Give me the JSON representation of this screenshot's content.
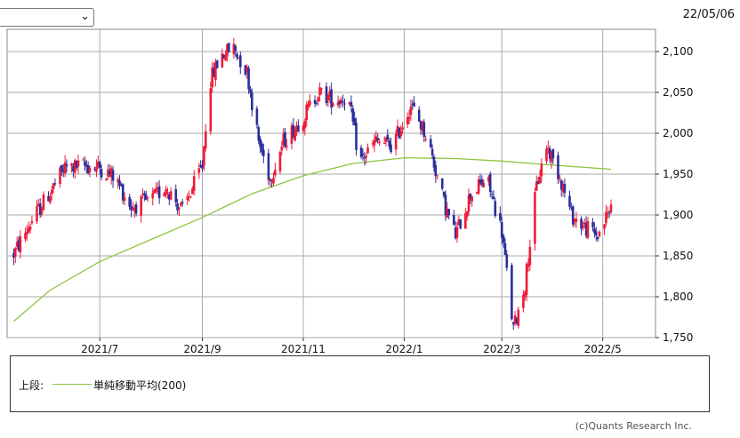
{
  "controls": {
    "period_select_value": "",
    "period_chevron_icon": "chevron-down-icon"
  },
  "date_label": "22/05/06",
  "legend": {
    "prefix": "上段:",
    "series_name": "単純移動平均(200)"
  },
  "credit": "(c)Quants Research Inc.",
  "colors": {
    "up_candle": "#ee1c3a",
    "down_candle": "#2b2f9a",
    "moving_average": "#8dc63f",
    "grid": "#aaaaaa"
  },
  "chart_data": {
    "type": "candlestick",
    "title": "",
    "xlabel": "",
    "ylabel": "",
    "ylim": [
      1750,
      2120
    ],
    "y_ticks": [
      "2,100",
      "2,050",
      "2,000",
      "1,950",
      "1,900",
      "1,850",
      "1,800",
      "1,750"
    ],
    "y_tick_values": [
      2100,
      2050,
      2000,
      1950,
      1900,
      1850,
      1800,
      1750
    ],
    "x_ticks": [
      "2021/7",
      "2021/9",
      "2021/11",
      "2022/1",
      "2022/3",
      "2022/5"
    ],
    "x_range": [
      "2021-05-06",
      "2022-05-06"
    ],
    "grid": true,
    "legend_position": "below",
    "series": [
      {
        "name": "単純移動平均(200)",
        "type": "line",
        "points": [
          [
            "2021-05-10",
            1770
          ],
          [
            "2021-06-01",
            1808
          ],
          [
            "2021-07-01",
            1843
          ],
          [
            "2021-08-01",
            1870
          ],
          [
            "2021-09-01",
            1897
          ],
          [
            "2021-10-01",
            1926
          ],
          [
            "2021-11-01",
            1948
          ],
          [
            "2021-12-01",
            1963
          ],
          [
            "2022-01-01",
            1970
          ],
          [
            "2022-02-01",
            1969
          ],
          [
            "2022-03-01",
            1966
          ],
          [
            "2022-04-01",
            1961
          ],
          [
            "2022-05-06",
            1956
          ]
        ]
      },
      {
        "name": "",
        "type": "ohlc",
        "anchors": [
          [
            "2021-05-10",
            1852
          ],
          [
            "2021-05-20",
            1890
          ],
          [
            "2021-06-01",
            1928
          ],
          [
            "2021-06-10",
            1958
          ],
          [
            "2021-06-20",
            1960
          ],
          [
            "2021-07-01",
            1958
          ],
          [
            "2021-07-10",
            1946
          ],
          [
            "2021-07-20",
            1910
          ],
          [
            "2021-08-01",
            1918
          ],
          [
            "2021-08-10",
            1935
          ],
          [
            "2021-08-20",
            1905
          ],
          [
            "2021-09-01",
            1960
          ],
          [
            "2021-09-05",
            2060
          ],
          [
            "2021-09-12",
            2095
          ],
          [
            "2021-09-20",
            2105
          ],
          [
            "2021-09-28",
            2075
          ],
          [
            "2021-10-05",
            1990
          ],
          [
            "2021-10-12",
            1945
          ],
          [
            "2021-10-20",
            1990
          ],
          [
            "2021-11-01",
            2020
          ],
          [
            "2021-11-10",
            2050
          ],
          [
            "2021-11-20",
            2040
          ],
          [
            "2021-11-28",
            2045
          ],
          [
            "2021-12-05",
            1965
          ],
          [
            "2021-12-15",
            1990
          ],
          [
            "2021-12-25",
            1985
          ],
          [
            "2022-01-05",
            2035
          ],
          [
            "2022-01-15",
            1995
          ],
          [
            "2022-01-25",
            1915
          ],
          [
            "2022-02-01",
            1875
          ],
          [
            "2022-02-10",
            1925
          ],
          [
            "2022-02-20",
            1945
          ],
          [
            "2022-03-01",
            1880
          ],
          [
            "2022-03-08",
            1760
          ],
          [
            "2022-03-15",
            1815
          ],
          [
            "2022-03-22",
            1935
          ],
          [
            "2022-03-28",
            1985
          ],
          [
            "2022-04-05",
            1948
          ],
          [
            "2022-04-12",
            1900
          ],
          [
            "2022-04-20",
            1885
          ],
          [
            "2022-04-28",
            1875
          ],
          [
            "2022-05-06",
            1910
          ]
        ]
      }
    ]
  }
}
